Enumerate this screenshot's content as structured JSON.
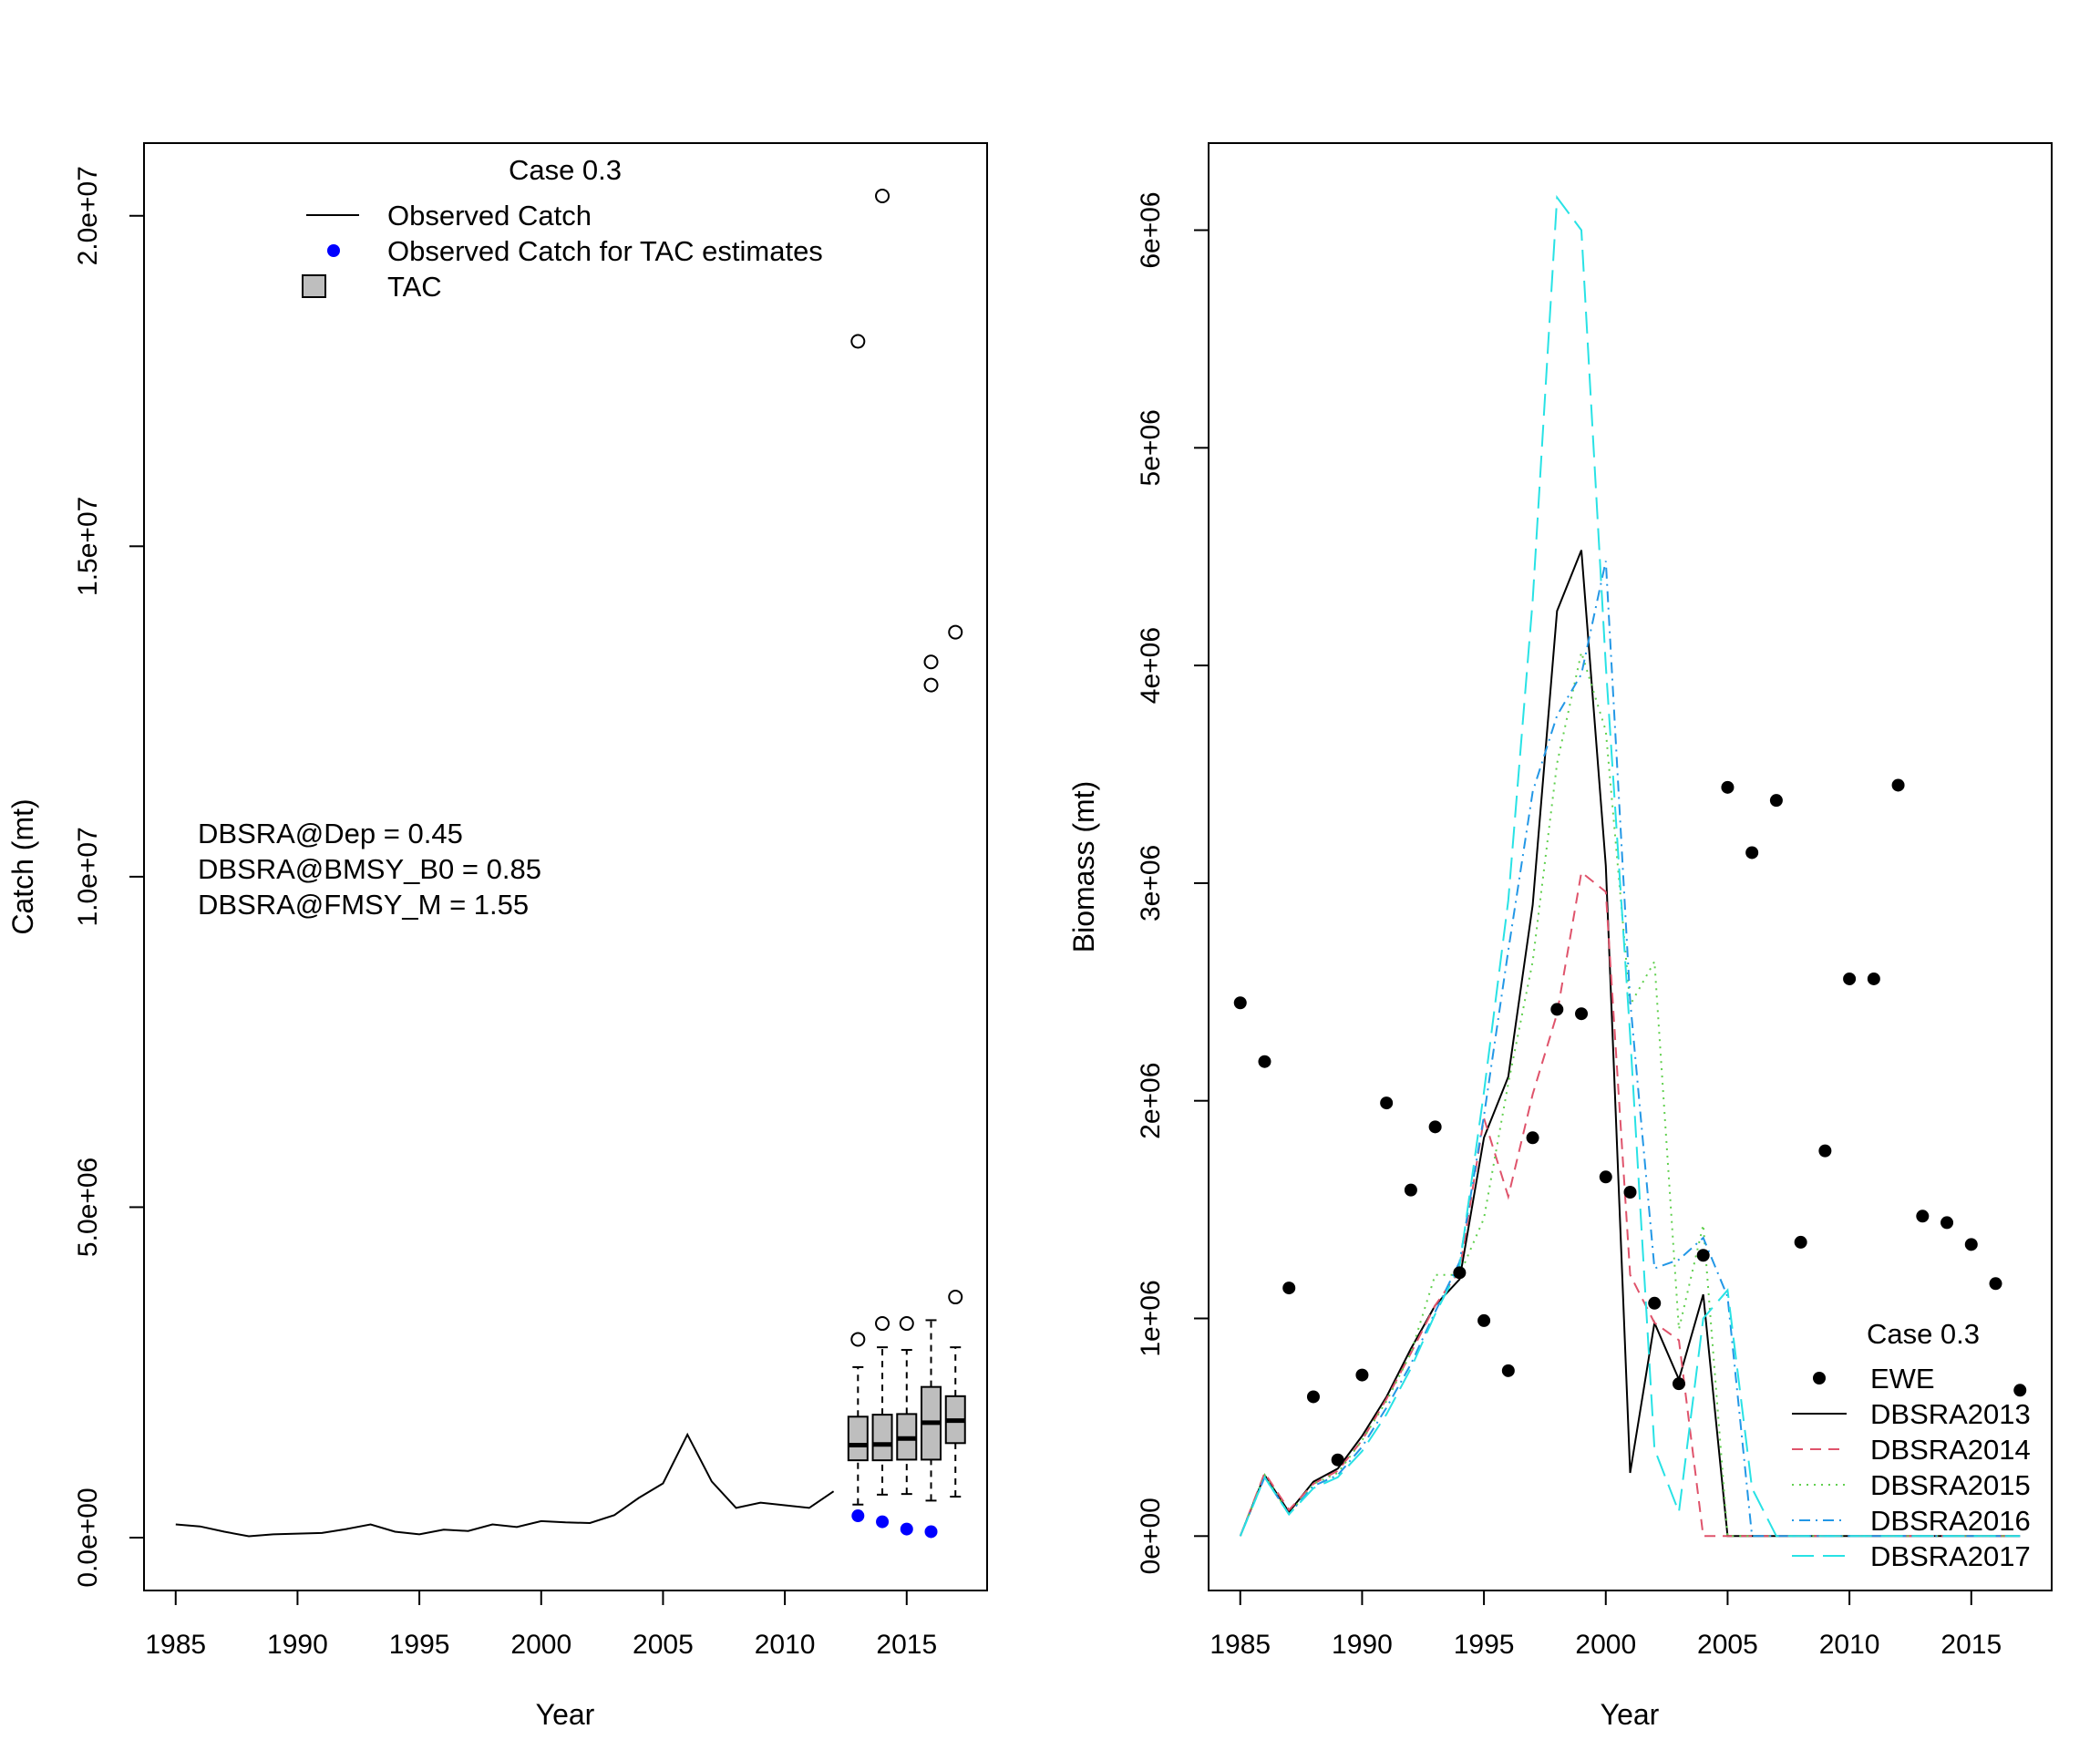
{
  "chart_data": [
    {
      "type": "line",
      "panel": "left",
      "xlabel": "Year",
      "ylabel": "Catch (mt)",
      "xlim": [
        1983.7,
        2018.3
      ],
      "ylim": [
        -800000,
        21100000
      ],
      "x_ticks": [
        1985,
        1990,
        1995,
        2000,
        2005,
        2010,
        2015
      ],
      "y_ticks": [
        {
          "value": 0,
          "label": "0.0e+00"
        },
        {
          "value": 5000000,
          "label": "5.0e+06"
        },
        {
          "value": 10000000,
          "label": "1.0e+07"
        },
        {
          "value": 15000000,
          "label": "1.5e+07"
        },
        {
          "value": 20000000,
          "label": "2.0e+07"
        }
      ],
      "legend": {
        "title": "Case 0.3",
        "position": "top",
        "entries": [
          "Observed Catch",
          "Observed Catch for TAC estimates",
          "TAC"
        ]
      },
      "annotations": [
        "DBSRA@Dep = 0.45",
        "DBSRA@BMSY_B0 = 0.85",
        "DBSRA@FMSY_M = 1.55"
      ],
      "observed_catch": {
        "name": "Observed Catch",
        "color": "#000000",
        "x": [
          1985,
          1986,
          1987,
          1988,
          1989,
          1990,
          1991,
          1992,
          1993,
          1994,
          1995,
          1996,
          1997,
          1998,
          1999,
          2000,
          2001,
          2002,
          2003,
          2004,
          2005,
          2006,
          2007,
          2008,
          2009,
          2010,
          2011,
          2012
        ],
        "y": [
          200000,
          170000,
          90000,
          20000,
          50000,
          60000,
          70000,
          130000,
          200000,
          90000,
          50000,
          120000,
          100000,
          200000,
          160000,
          250000,
          230000,
          220000,
          340000,
          600000,
          820000,
          1560000,
          850000,
          450000,
          530000,
          490000,
          450000,
          700000
        ]
      },
      "tac_catch_points": {
        "name": "Observed Catch for TAC estimates",
        "color": "#0000ff",
        "x": [
          2013,
          2014,
          2015,
          2016
        ],
        "y": [
          330000,
          240000,
          130000,
          90000
        ]
      },
      "tac_boxes": {
        "name": "TAC",
        "fill": "#bebebe",
        "boxes": [
          {
            "x": 2013,
            "whisker_low": 500000,
            "q1": 1170000,
            "median": 1400000,
            "q3": 1830000,
            "whisker_high": 2580000,
            "outliers": [
              3000000,
              18100000
            ]
          },
          {
            "x": 2014,
            "whisker_low": 650000,
            "q1": 1170000,
            "median": 1410000,
            "q3": 1860000,
            "whisker_high": 2880000,
            "outliers": [
              3240000,
              20300000
            ]
          },
          {
            "x": 2015,
            "whisker_low": 660000,
            "q1": 1180000,
            "median": 1500000,
            "q3": 1870000,
            "whisker_high": 2840000,
            "outliers": [
              3240000
            ]
          },
          {
            "x": 2016,
            "whisker_low": 560000,
            "q1": 1180000,
            "median": 1740000,
            "q3": 2280000,
            "whisker_high": 3290000,
            "outliers": [
              12900000,
              13250000
            ]
          },
          {
            "x": 2017,
            "whisker_low": 620000,
            "q1": 1430000,
            "median": 1770000,
            "q3": 2140000,
            "whisker_high": 2880000,
            "outliers": [
              3640000,
              13700000
            ]
          }
        ]
      }
    },
    {
      "type": "line",
      "panel": "right",
      "xlabel": "Year",
      "ylabel": "Biomass (mt)",
      "xlim": [
        1983.7,
        2018.3
      ],
      "ylim": [
        -250000,
        6400000
      ],
      "x_ticks": [
        1985,
        1990,
        1995,
        2000,
        2005,
        2010,
        2015
      ],
      "y_ticks": [
        {
          "value": 0,
          "label": "0e+00"
        },
        {
          "value": 1000000,
          "label": "1e+06"
        },
        {
          "value": 2000000,
          "label": "2e+06"
        },
        {
          "value": 3000000,
          "label": "3e+06"
        },
        {
          "value": 4000000,
          "label": "4e+06"
        },
        {
          "value": 5000000,
          "label": "5e+06"
        },
        {
          "value": 6000000,
          "label": "6e+06"
        }
      ],
      "legend": {
        "title": "Case 0.3",
        "position": "bottom-right",
        "entries": [
          "EWE",
          "DBSRA2013",
          "DBSRA2014",
          "DBSRA2015",
          "DBSRA2016",
          "DBSRA2017"
        ]
      },
      "ewe_points": {
        "name": "EWE",
        "color": "#000000",
        "x": [
          1985,
          1986,
          1987,
          1988,
          1989,
          1990,
          1991,
          1992,
          1993,
          1994,
          1995,
          1996,
          1997,
          1998,
          1999,
          2000,
          2001,
          2002,
          2003,
          2004,
          2005,
          2006,
          2007,
          2008,
          2009,
          2010,
          2011,
          2012,
          2013,
          2014,
          2015,
          2016,
          2017
        ],
        "y": [
          2450000,
          2180000,
          1140000,
          640000,
          350000,
          740000,
          1990000,
          1590000,
          1880000,
          1210000,
          990000,
          760000,
          1830000,
          2420000,
          2400000,
          1650000,
          1580000,
          1070000,
          700000,
          1290000,
          3440000,
          3140000,
          3380000,
          1350000,
          1770000,
          2560000,
          2560000,
          3450000,
          1470000,
          1440000,
          1340000,
          1160000,
          670000
        ]
      },
      "series": [
        {
          "name": "DBSRA2013",
          "color": "#000000",
          "dash": "",
          "x": [
            1985,
            1986,
            1987,
            1988,
            1989,
            1990,
            1991,
            1992,
            1993,
            1994,
            1995,
            1996,
            1997,
            1998,
            1999,
            2000,
            2001,
            2002,
            2003,
            2004,
            2005,
            2006,
            2007,
            2008,
            2009,
            2010,
            2011,
            2012,
            2013,
            2014,
            2015,
            2016,
            2017
          ],
          "y": [
            0,
            280000,
            110000,
            250000,
            310000,
            460000,
            640000,
            860000,
            1060000,
            1180000,
            1830000,
            2110000,
            2900000,
            4250000,
            4530000,
            3080000,
            290000,
            980000,
            720000,
            1110000,
            0,
            0,
            0,
            0,
            0,
            0,
            0,
            0,
            0,
            0,
            0,
            0,
            0
          ]
        },
        {
          "name": "DBSRA2014",
          "color": "#df536b",
          "dash": "12,8",
          "x": [
            1985,
            1986,
            1987,
            1988,
            1989,
            1990,
            1991,
            1992,
            1993,
            1994,
            1995,
            1996,
            1997,
            1998,
            1999,
            2000,
            2001,
            2002,
            2003,
            2004,
            2005,
            2006,
            2007,
            2008,
            2009,
            2010,
            2011,
            2012,
            2013,
            2014,
            2015,
            2016,
            2017
          ],
          "y": [
            0,
            290000,
            120000,
            240000,
            300000,
            440000,
            630000,
            840000,
            1060000,
            1220000,
            1920000,
            1560000,
            2030000,
            2400000,
            3050000,
            2960000,
            1200000,
            980000,
            900000,
            0,
            0,
            0,
            0,
            0,
            0,
            0,
            0,
            0,
            0,
            0,
            0,
            0,
            0
          ]
        },
        {
          "name": "DBSRA2015",
          "color": "#61d04f",
          "dash": "2,6",
          "x": [
            1985,
            1986,
            1987,
            1988,
            1989,
            1990,
            1991,
            1992,
            1993,
            1994,
            1995,
            1996,
            1997,
            1998,
            1999,
            2000,
            2001,
            2002,
            2003,
            2004,
            2005,
            2006,
            2007,
            2008,
            2009,
            2010,
            2011,
            2012,
            2013,
            2014,
            2015,
            2016,
            2017
          ],
          "y": [
            0,
            280000,
            100000,
            240000,
            290000,
            440000,
            620000,
            840000,
            1200000,
            1200000,
            1460000,
            2080000,
            2640000,
            3550000,
            4060000,
            3700000,
            2440000,
            2640000,
            950000,
            1430000,
            0,
            0,
            0,
            0,
            0,
            0,
            0,
            0,
            0,
            0,
            0,
            0,
            0
          ]
        },
        {
          "name": "DBSRA2016",
          "color": "#2297e6",
          "dash": "2,6,12,6",
          "x": [
            1985,
            1986,
            1987,
            1988,
            1989,
            1990,
            1991,
            1992,
            1993,
            1994,
            1995,
            1996,
            1997,
            1998,
            1999,
            2000,
            2001,
            2002,
            2003,
            2004,
            2005,
            2006,
            2007,
            2008,
            2009,
            2010,
            2011,
            2012,
            2013,
            2014,
            2015,
            2016,
            2017
          ],
          "y": [
            0,
            270000,
            100000,
            230000,
            280000,
            410000,
            590000,
            790000,
            1030000,
            1260000,
            1930000,
            2690000,
            3420000,
            3770000,
            3960000,
            4480000,
            2460000,
            1230000,
            1270000,
            1370000,
            1100000,
            0,
            0,
            0,
            0,
            0,
            0,
            0,
            0,
            0,
            0,
            0,
            0
          ]
        },
        {
          "name": "DBSRA2017",
          "color": "#28e2e5",
          "dash": "24,10",
          "x": [
            1985,
            1986,
            1987,
            1988,
            1989,
            1990,
            1991,
            1992,
            1993,
            1994,
            1995,
            1996,
            1997,
            1998,
            1999,
            2000,
            2001,
            2002,
            2003,
            2004,
            2005,
            2006,
            2007,
            2008,
            2009,
            2010,
            2011,
            2012,
            2013,
            2014,
            2015,
            2016,
            2017
          ],
          "y": [
            0,
            270000,
            100000,
            220000,
            270000,
            390000,
            560000,
            770000,
            1020000,
            1240000,
            2040000,
            2920000,
            4300000,
            6150000,
            6000000,
            4000000,
            2300000,
            400000,
            110000,
            1000000,
            1130000,
            220000,
            0,
            0,
            0,
            0,
            0,
            0,
            0,
            0,
            0,
            0,
            0
          ]
        }
      ]
    }
  ]
}
